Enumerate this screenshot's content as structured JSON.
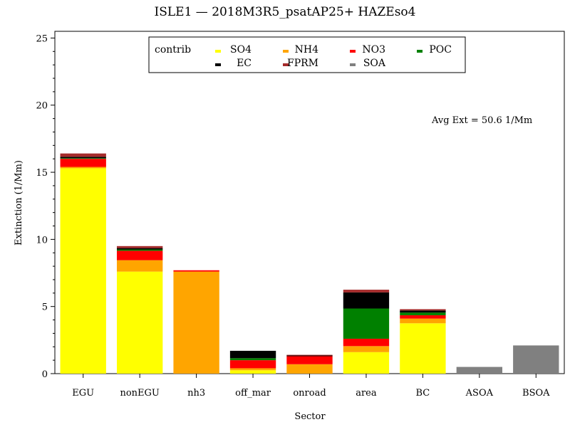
{
  "chart_data": {
    "type": "bar",
    "stacked": true,
    "title": "ISLE1 —  2018M3R5_psatAP25+ HAZEso4",
    "xlabel": "Sector",
    "ylabel": "Extinction (1/Mm)",
    "ylim": [
      0,
      25.5
    ],
    "yticks": [
      "0",
      "5",
      "10",
      "15",
      "20",
      "25"
    ],
    "categories": [
      "EGU",
      "nonEGU",
      "nh3",
      "off_mar",
      "onroad",
      "area",
      "BC",
      "ASOA",
      "BSOA"
    ],
    "legend": {
      "title": "contrib",
      "placement": "top-center"
    },
    "annotation": "Avg Ext =  50.6  1/Mm",
    "series": [
      {
        "name": "SO4",
        "color": "#ffff00",
        "values": [
          15.3,
          7.6,
          0.0,
          0.25,
          0.0,
          1.6,
          3.75,
          0.0,
          0.0
        ]
      },
      {
        "name": "NH4",
        "color": "#ffa500",
        "values": [
          0.1,
          0.85,
          7.6,
          0.15,
          0.7,
          0.45,
          0.35,
          0.0,
          0.0
        ]
      },
      {
        "name": "NO3",
        "color": "#ff0000",
        "values": [
          0.6,
          0.7,
          0.1,
          0.6,
          0.6,
          0.55,
          0.25,
          0.0,
          0.0
        ]
      },
      {
        "name": "POC",
        "color": "#008000",
        "values": [
          0.05,
          0.1,
          0.0,
          0.15,
          0.0,
          2.25,
          0.2,
          0.0,
          0.0
        ]
      },
      {
        "name": "EC",
        "color": "#000000",
        "values": [
          0.1,
          0.1,
          0.0,
          0.55,
          0.05,
          1.2,
          0.15,
          0.0,
          0.0
        ]
      },
      {
        "name": "FPRM",
        "color": "#a52a2a",
        "values": [
          0.25,
          0.15,
          0.0,
          0.0,
          0.05,
          0.2,
          0.1,
          0.0,
          0.0
        ]
      },
      {
        "name": "SOA",
        "color": "#808080",
        "values": [
          0.0,
          0.0,
          0.0,
          0.0,
          0.0,
          0.0,
          0.0,
          0.5,
          2.1
        ]
      }
    ]
  }
}
